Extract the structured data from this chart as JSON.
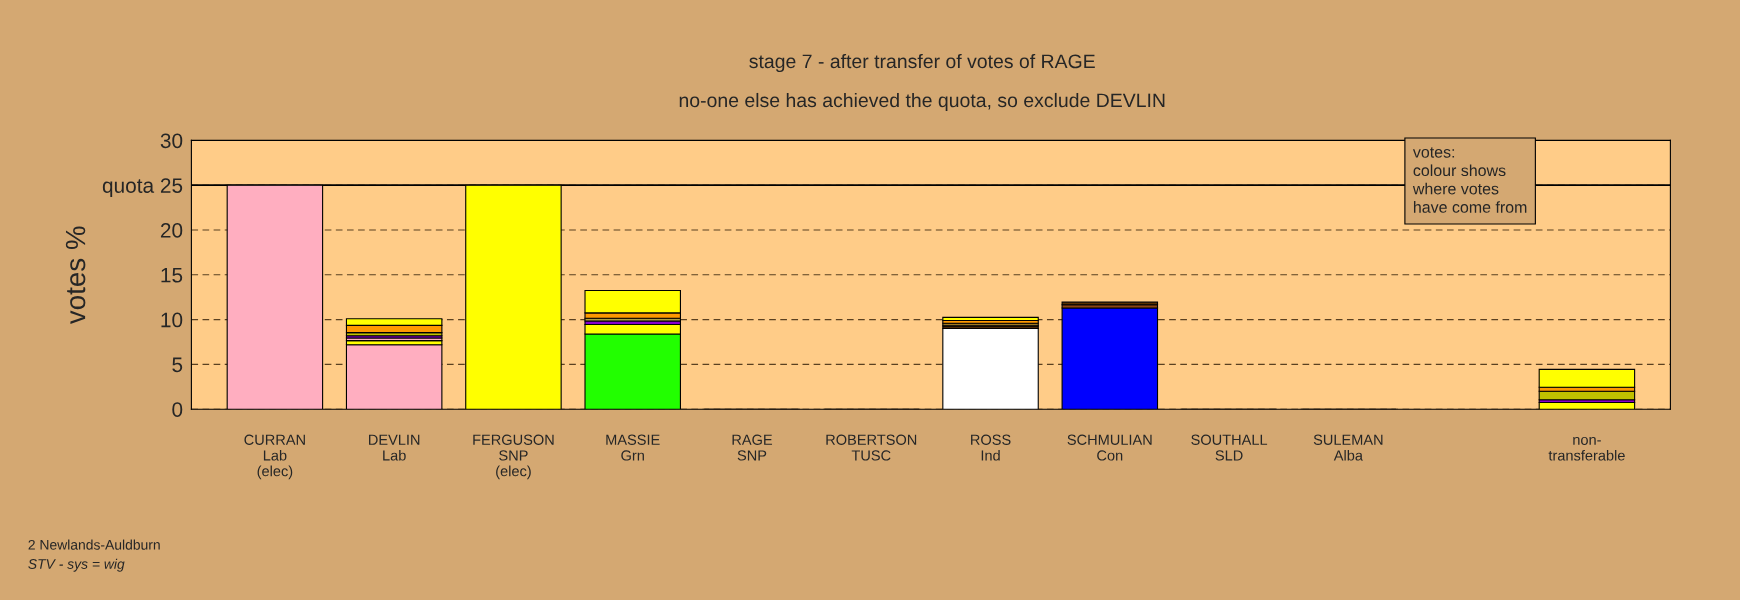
{
  "chart_data": {
    "type": "bar",
    "stacked": true,
    "title": "stage 7 - after transfer of votes of RAGE",
    "subtitle": "no-one else has achieved the quota, so exclude DEVLIN",
    "ylabel": "votes %",
    "categories": [
      "CURRAN\nLab\n(elec)",
      "DEVLIN\nLab",
      "FERGUSON\nSNP\n(elec)",
      "MASSIE\nGrn",
      "RAGE\nSNP",
      "ROBERTSON\nTUSC",
      "ROSS\nInd",
      "SCHMULIAN\nCon",
      "SOUTHALL\nSLD",
      "SULEMAN\nAlba",
      null,
      "non-\ntransferable"
    ],
    "series": [
      {
        "values": [
          25,
          7.2,
          25,
          8.4,
          0,
          0,
          9.0,
          11.3,
          0,
          0,
          null,
          0.75
        ],
        "colors": [
          "#ffaec0",
          "#ffaec0",
          "#ffff00",
          "#22ff00",
          "#ffffff",
          "#ffffff",
          "#ffffff",
          "#0000ff",
          "#ffffff",
          "#ffffff",
          null,
          "#ffff00"
        ]
      },
      {
        "values": [
          null,
          0.45,
          null,
          1.05,
          null,
          null,
          0.3,
          0.35,
          null,
          null,
          null,
          0.3
        ],
        "colors": [
          null,
          "#ffff00",
          null,
          "#ffff00",
          null,
          null,
          "#4a2a0a",
          "#8b4513",
          null,
          null,
          null,
          "#8800cc"
        ]
      },
      {
        "values": [
          null,
          0.3,
          null,
          0.4,
          null,
          null,
          0.3,
          0.3,
          null,
          null,
          null,
          0.95
        ],
        "colors": [
          null,
          "#ffaec0",
          null,
          "#8800cc",
          null,
          null,
          "#a07820",
          "#5a3000",
          null,
          null,
          null,
          "#c0c000"
        ]
      },
      {
        "values": [
          null,
          0.25,
          null,
          0.3,
          null,
          null,
          0.3,
          null,
          null,
          null,
          null,
          0.45
        ],
        "colors": [
          null,
          "#8800cc",
          null,
          "#b0a040",
          null,
          null,
          "#ff9900",
          null,
          null,
          null,
          null,
          "#ff9900"
        ]
      },
      {
        "values": [
          null,
          0.35,
          null,
          0.6,
          null,
          null,
          0.35,
          null,
          null,
          null,
          null,
          2.0
        ],
        "colors": [
          null,
          "#c0c000",
          null,
          "#ff9900",
          null,
          null,
          "#ffff00",
          null,
          null,
          null,
          null,
          "#ffff00"
        ]
      },
      {
        "values": [
          null,
          0.8,
          null,
          2.5,
          null,
          null,
          null,
          null,
          null,
          null,
          null,
          null
        ],
        "colors": [
          null,
          "#ff9900",
          null,
          "#ffff00",
          null,
          null,
          null,
          null,
          null,
          null,
          null,
          null
        ]
      },
      {
        "values": [
          null,
          0.75,
          null,
          null,
          null,
          null,
          null,
          null,
          null,
          null,
          null,
          null
        ],
        "colors": [
          null,
          "#ffff00",
          null,
          null,
          null,
          null,
          null,
          null,
          null,
          null,
          null,
          null
        ]
      }
    ],
    "ylim": [
      0,
      30
    ],
    "yticks": [
      0,
      5,
      10,
      15,
      20,
      {
        "value": 25,
        "label": "quota 25"
      },
      30
    ],
    "ref_lines": [
      {
        "axis": "y",
        "value": 25,
        "color": "#000000",
        "line_style": "solid"
      }
    ],
    "grid": "y",
    "annotations": [
      "votes:\ncolour shows\nwhere votes\nhave come from",
      "2 Newlands-Auldburn",
      "STV - sys = wig"
    ]
  }
}
